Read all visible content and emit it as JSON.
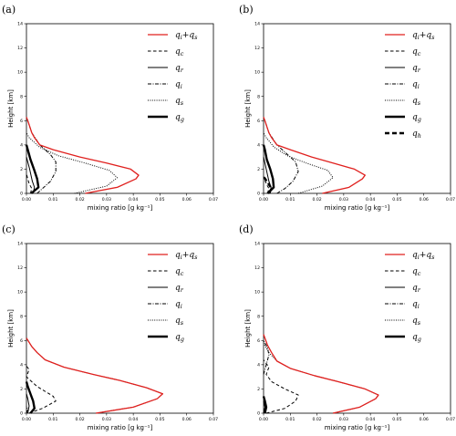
{
  "figure": {
    "panel_labels": [
      "(a)",
      "(b)",
      "(c)",
      "(d)"
    ]
  },
  "chart_data": [
    {
      "type": "line",
      "panel": "(a)",
      "xlabel": "mixing ratio [g kg⁻¹]",
      "ylabel": "Height [km]",
      "xlim": [
        0,
        0.07
      ],
      "ylim": [
        0,
        14
      ],
      "xticks": [
        "0.00",
        "0.01",
        "0.02",
        "0.03",
        "0.04",
        "0.05",
        "0.06",
        "0.07"
      ],
      "yticks": [
        "0",
        "2",
        "4",
        "6",
        "8",
        "10",
        "12",
        "14"
      ],
      "grid": false,
      "legend_position": "top-right",
      "series": [
        {
          "name": "qi+qs",
          "style": "red",
          "points": [
            [
              0.022,
              0
            ],
            [
              0.034,
              0.5
            ],
            [
              0.041,
              1.2
            ],
            [
              0.042,
              1.5
            ],
            [
              0.039,
              2.0
            ],
            [
              0.03,
              2.5
            ],
            [
              0.02,
              3.0
            ],
            [
              0.01,
              3.6
            ],
            [
              0.005,
              4.0
            ],
            [
              0.003,
              4.6
            ],
            [
              0.002,
              5.0
            ],
            [
              0.0005,
              6.0
            ],
            [
              0,
              6.3
            ]
          ]
        },
        {
          "name": "qc",
          "style": "dashed",
          "points": [
            [
              0.0015,
              0
            ],
            [
              0.002,
              0.4
            ],
            [
              0.001,
              0.8
            ],
            [
              0.0005,
              1.2
            ],
            [
              0,
              1.6
            ]
          ]
        },
        {
          "name": "qr",
          "style": "solid",
          "points": [
            [
              0.0025,
              0
            ],
            [
              0.003,
              0.5
            ],
            [
              0.0022,
              1.0
            ],
            [
              0.0012,
              2.0
            ],
            [
              0,
              3.0
            ]
          ]
        },
        {
          "name": "qi",
          "style": "dashdot",
          "points": [
            [
              0.004,
              0
            ],
            [
              0.006,
              0.4
            ],
            [
              0.009,
              1.0
            ],
            [
              0.011,
              1.8
            ],
            [
              0.011,
              2.6
            ],
            [
              0.009,
              3.2
            ],
            [
              0.005,
              4.0
            ],
            [
              0.002,
              5.0
            ],
            [
              0.0005,
              6.0
            ],
            [
              0,
              6.2
            ]
          ]
        },
        {
          "name": "qs",
          "style": "dotted",
          "points": [
            [
              0.018,
              0
            ],
            [
              0.03,
              0.6
            ],
            [
              0.034,
              1.3
            ],
            [
              0.031,
              1.9
            ],
            [
              0.022,
              2.5
            ],
            [
              0.012,
              3.1
            ],
            [
              0.005,
              3.8
            ],
            [
              0.001,
              4.6
            ],
            [
              0,
              5.0
            ]
          ]
        },
        {
          "name": "qg",
          "style": "thick",
          "points": [
            [
              0.0018,
              0
            ],
            [
              0.0045,
              0.5
            ],
            [
              0.004,
              1.2
            ],
            [
              0.0028,
              2.0
            ],
            [
              0.0015,
              2.8
            ],
            [
              0.0005,
              3.6
            ],
            [
              0,
              4.0
            ]
          ]
        }
      ]
    },
    {
      "type": "line",
      "panel": "(b)",
      "xlabel": "mixing ratio [g kg⁻¹]",
      "ylabel": "Height [km]",
      "xlim": [
        0,
        0.07
      ],
      "ylim": [
        0,
        14
      ],
      "xticks": [
        "0.00",
        "0.01",
        "0.02",
        "0.03",
        "0.04",
        "0.05",
        "0.06",
        "0.07"
      ],
      "yticks": [
        "0",
        "2",
        "4",
        "6",
        "8",
        "10",
        "12",
        "14"
      ],
      "grid": false,
      "legend_position": "top-right",
      "series": [
        {
          "name": "qi+qs",
          "style": "red",
          "points": [
            [
              0.022,
              0
            ],
            [
              0.032,
              0.5
            ],
            [
              0.037,
              1.2
            ],
            [
              0.038,
              1.5
            ],
            [
              0.034,
              2.0
            ],
            [
              0.026,
              2.5
            ],
            [
              0.018,
              3.0
            ],
            [
              0.01,
              3.6
            ],
            [
              0.005,
              4.0
            ],
            [
              0.003,
              4.6
            ],
            [
              0.002,
              5.0
            ],
            [
              0.0005,
              6.0
            ],
            [
              0,
              6.3
            ]
          ]
        },
        {
          "name": "qc",
          "style": "dashed",
          "points": [
            [
              0.0015,
              0
            ],
            [
              0.002,
              0.4
            ],
            [
              0.001,
              0.8
            ],
            [
              0,
              1.4
            ]
          ]
        },
        {
          "name": "qr",
          "style": "solid",
          "points": [
            [
              0.0025,
              0
            ],
            [
              0.0028,
              0.5
            ],
            [
              0.002,
              1.0
            ],
            [
              0.001,
              2.0
            ],
            [
              0,
              3.0
            ]
          ]
        },
        {
          "name": "qi",
          "style": "dashdot",
          "points": [
            [
              0.005,
              0
            ],
            [
              0.008,
              0.4
            ],
            [
              0.011,
              1.0
            ],
            [
              0.013,
              1.8
            ],
            [
              0.012,
              2.6
            ],
            [
              0.009,
              3.2
            ],
            [
              0.005,
              4.0
            ],
            [
              0.002,
              5.0
            ],
            [
              0.0005,
              6.0
            ],
            [
              0,
              6.2
            ]
          ]
        },
        {
          "name": "qs",
          "style": "dotted",
          "points": [
            [
              0.013,
              0
            ],
            [
              0.022,
              0.6
            ],
            [
              0.026,
              1.3
            ],
            [
              0.024,
              1.9
            ],
            [
              0.016,
              2.5
            ],
            [
              0.009,
              3.1
            ],
            [
              0.004,
              3.8
            ],
            [
              0.001,
              4.6
            ],
            [
              0,
              5.0
            ]
          ]
        },
        {
          "name": "qg",
          "style": "thick",
          "points": [
            [
              0.0015,
              0
            ],
            [
              0.0038,
              0.5
            ],
            [
              0.0035,
              1.2
            ],
            [
              0.0025,
              2.0
            ],
            [
              0.0012,
              2.8
            ],
            [
              0.0005,
              3.6
            ],
            [
              0,
              4.0
            ]
          ]
        },
        {
          "name": "qh",
          "style": "thickdashed",
          "points": [
            [
              0.002,
              0
            ],
            [
              0.003,
              0.4
            ],
            [
              0.0015,
              0.9
            ],
            [
              0,
              1.4
            ]
          ]
        }
      ]
    },
    {
      "type": "line",
      "panel": "(c)",
      "xlabel": "mixing ratio [g kg⁻¹]",
      "ylabel": "Height [km]",
      "xlim": [
        0,
        0.07
      ],
      "ylim": [
        0,
        14
      ],
      "xticks": [
        "0.00",
        "0.01",
        "0.02",
        "0.03",
        "0.04",
        "0.05",
        "0.06",
        "0.07"
      ],
      "yticks": [
        "0",
        "2",
        "4",
        "6",
        "8",
        "10",
        "12",
        "14"
      ],
      "grid": false,
      "legend_position": "top-right",
      "series": [
        {
          "name": "qi+qs",
          "style": "red",
          "points": [
            [
              0.026,
              0
            ],
            [
              0.04,
              0.5
            ],
            [
              0.049,
              1.2
            ],
            [
              0.051,
              1.6
            ],
            [
              0.045,
              2.1
            ],
            [
              0.035,
              2.7
            ],
            [
              0.025,
              3.2
            ],
            [
              0.014,
              3.8
            ],
            [
              0.007,
              4.4
            ],
            [
              0.004,
              5.0
            ],
            [
              0.002,
              5.5
            ],
            [
              0,
              6.2
            ]
          ]
        },
        {
          "name": "qc",
          "style": "dashed",
          "points": [
            [
              0.001,
              0
            ],
            [
              0.006,
              0.4
            ],
            [
              0.011,
              1.0
            ],
            [
              0.01,
              1.4
            ],
            [
              0.004,
              2.2
            ],
            [
              0,
              3.0
            ],
            [
              0.001,
              3.6
            ],
            [
              0,
              3.9
            ]
          ]
        },
        {
          "name": "qr",
          "style": "solid",
          "points": [
            [
              0.0005,
              0
            ],
            [
              0.001,
              0.6
            ],
            [
              0.0005,
              1.2
            ],
            [
              0,
              1.6
            ]
          ]
        },
        {
          "name": "qi",
          "style": "dashdot",
          "points": [
            [
              0,
              0
            ],
            [
              0.0005,
              0.3
            ],
            [
              0,
              0.6
            ]
          ]
        },
        {
          "name": "qs",
          "style": "dotted",
          "points": [
            [
              0.026,
              0
            ],
            [
              0.04,
              0.5
            ],
            [
              0.049,
              1.2
            ],
            [
              0.051,
              1.6
            ],
            [
              0.045,
              2.1
            ],
            [
              0.035,
              2.7
            ],
            [
              0.025,
              3.2
            ],
            [
              0.014,
              3.8
            ],
            [
              0.007,
              4.4
            ],
            [
              0.004,
              5.0
            ],
            [
              0.002,
              5.5
            ],
            [
              0,
              6.2
            ]
          ]
        },
        {
          "name": "qg",
          "style": "thick",
          "points": [
            [
              0.0015,
              0
            ],
            [
              0.003,
              0.4
            ],
            [
              0.0025,
              1.0
            ],
            [
              0.0015,
              1.6
            ],
            [
              0.0005,
              2.2
            ],
            [
              0,
              2.6
            ]
          ]
        }
      ]
    },
    {
      "type": "line",
      "panel": "(d)",
      "xlabel": "mixing ratio [g kg⁻¹]",
      "ylabel": "Height [km]",
      "xlim": [
        0,
        0.07
      ],
      "ylim": [
        0,
        14
      ],
      "xticks": [
        "0.00",
        "0.01",
        "0.02",
        "0.03",
        "0.04",
        "0.05",
        "0.06",
        "0.07"
      ],
      "yticks": [
        "0",
        "2",
        "4",
        "6",
        "8",
        "10",
        "12",
        "14"
      ],
      "grid": false,
      "legend_position": "top-right",
      "series": [
        {
          "name": "qi+qs",
          "style": "red",
          "points": [
            [
              0.026,
              0
            ],
            [
              0.036,
              0.5
            ],
            [
              0.042,
              1.2
            ],
            [
              0.043,
              1.5
            ],
            [
              0.038,
              2.0
            ],
            [
              0.028,
              2.6
            ],
            [
              0.019,
              3.1
            ],
            [
              0.01,
              3.7
            ],
            [
              0.005,
              4.3
            ],
            [
              0.003,
              5.0
            ],
            [
              0.0015,
              5.6
            ],
            [
              0,
              6.5
            ]
          ]
        },
        {
          "name": "qc",
          "style": "dashed",
          "points": [
            [
              0.001,
              0
            ],
            [
              0.008,
              0.4
            ],
            [
              0.012,
              1.0
            ],
            [
              0.013,
              1.5
            ],
            [
              0.008,
              2.0
            ],
            [
              0.003,
              2.6
            ],
            [
              0.001,
              3.2
            ],
            [
              0.002,
              3.8
            ],
            [
              0,
              4.4
            ]
          ]
        },
        {
          "name": "qr",
          "style": "solid",
          "points": [
            [
              0,
              0
            ],
            [
              0.0005,
              0.5
            ],
            [
              0,
              1.0
            ]
          ]
        },
        {
          "name": "qi",
          "style": "dashdot",
          "points": [
            [
              0,
              3.2
            ],
            [
              0.001,
              4.0
            ],
            [
              0.002,
              4.8
            ],
            [
              0.0015,
              5.4
            ],
            [
              0,
              6.0
            ]
          ]
        },
        {
          "name": "qs",
          "style": "dotted",
          "points": [
            [
              0.026,
              0
            ],
            [
              0.036,
              0.5
            ],
            [
              0.042,
              1.2
            ],
            [
              0.043,
              1.5
            ],
            [
              0.038,
              2.0
            ],
            [
              0.028,
              2.6
            ],
            [
              0.019,
              3.1
            ],
            [
              0.01,
              3.7
            ],
            [
              0.005,
              4.3
            ],
            [
              0.002,
              5.0
            ],
            [
              0.001,
              5.4
            ],
            [
              0,
              5.8
            ]
          ]
        },
        {
          "name": "qg",
          "style": "thick",
          "points": [
            [
              0.0005,
              0
            ],
            [
              0.001,
              0.5
            ],
            [
              0.0005,
              1.0
            ],
            [
              0,
              1.4
            ]
          ]
        }
      ]
    }
  ]
}
